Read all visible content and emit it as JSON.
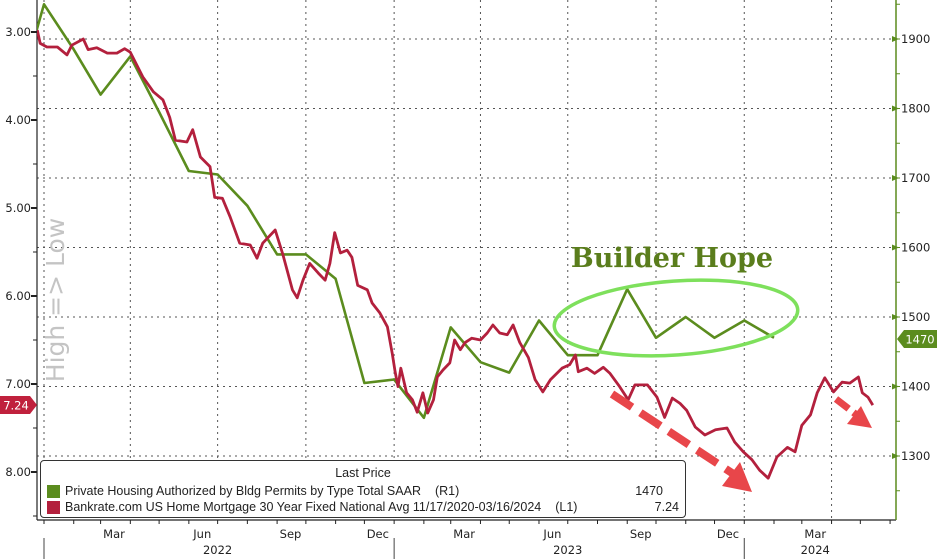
{
  "chart_data": {
    "type": "line",
    "left_axis": {
      "label": "High => Low",
      "ticks": [
        "3.00",
        "4.00",
        "5.00",
        "6.00",
        "7.00",
        "8.00"
      ],
      "range": [
        2.95,
        8.55
      ],
      "inverted": true
    },
    "right_axis": {
      "ticks": [
        "1300",
        "1400",
        "1500",
        "1600",
        "1700",
        "1800",
        "1900"
      ],
      "range": [
        1230,
        1955
      ]
    },
    "x_axis": {
      "month_labels": [
        {
          "label": "Mar",
          "date": "2022-03-15"
        },
        {
          "label": "Jun",
          "date": "2022-06-15"
        },
        {
          "label": "Sep",
          "date": "2022-09-15"
        },
        {
          "label": "Dec",
          "date": "2022-12-15"
        },
        {
          "label": "Mar",
          "date": "2023-03-15"
        },
        {
          "label": "Jun",
          "date": "2023-06-15"
        },
        {
          "label": "Sep",
          "date": "2023-09-15"
        },
        {
          "label": "Dec",
          "date": "2023-12-15"
        },
        {
          "label": "Mar",
          "date": "2024-03-15"
        }
      ],
      "year_labels": [
        {
          "label": "2022",
          "date": "2022-07-01"
        },
        {
          "label": "2023",
          "date": "2023-07-01"
        },
        {
          "label": "2024",
          "date": "2024-03-15"
        }
      ]
    },
    "grid": true,
    "legend": {
      "title": "Last Price",
      "position": "bottom-left",
      "entries": [
        {
          "label": "Private Housing Authorized by Bldg Permits by Type Total SAAR",
          "axis": "(R1)",
          "last": "1470",
          "color": "#5b8c1e"
        },
        {
          "label": "Bankrate.com US Home Mortgage 30 Year Fixed National Avg 11/17/2020-03/16/2024",
          "axis": "(L1)",
          "last": "7.24",
          "color": "#b3203d"
        }
      ]
    },
    "last_value_tags": {
      "left": "7.24",
      "right": "1470"
    },
    "series": [
      {
        "axis": "right",
        "color": "#5b8c1e",
        "points": [
          [
            "2021-12-01",
            1800
          ],
          [
            "2022-01-01",
            1950
          ],
          [
            "2022-02-01",
            1885
          ],
          [
            "2022-03-01",
            1820
          ],
          [
            "2022-04-01",
            1875
          ],
          [
            "2022-05-01",
            1795
          ],
          [
            "2022-06-01",
            1710
          ],
          [
            "2022-07-01",
            1705
          ],
          [
            "2022-08-01",
            1660
          ],
          [
            "2022-09-01",
            1590
          ],
          [
            "2022-10-01",
            1590
          ],
          [
            "2022-11-01",
            1555
          ],
          [
            "2022-12-01",
            1405
          ],
          [
            "2023-01-01",
            1410
          ],
          [
            "2023-02-01",
            1355
          ],
          [
            "2023-03-01",
            1485
          ],
          [
            "2023-04-01",
            1435
          ],
          [
            "2023-05-01",
            1420
          ],
          [
            "2023-06-01",
            1495
          ],
          [
            "2023-07-01",
            1445
          ],
          [
            "2023-08-01",
            1445
          ],
          [
            "2023-09-01",
            1540
          ],
          [
            "2023-10-01",
            1470
          ],
          [
            "2023-11-01",
            1500
          ],
          [
            "2023-12-01",
            1470
          ],
          [
            "2024-01-01",
            1495
          ],
          [
            "2024-02-01",
            1470
          ]
        ]
      },
      {
        "axis": "left",
        "color": "#b3203d",
        "points": [
          [
            "2021-12-25",
            2.98
          ],
          [
            "2021-12-28",
            3.13
          ],
          [
            "2022-01-04",
            3.17
          ],
          [
            "2022-01-15",
            3.17
          ],
          [
            "2022-01-25",
            3.26
          ],
          [
            "2022-01-30",
            3.15
          ],
          [
            "2022-02-11",
            3.08
          ],
          [
            "2022-02-16",
            3.2
          ],
          [
            "2022-02-25",
            3.18
          ],
          [
            "2022-03-08",
            3.24
          ],
          [
            "2022-03-18",
            3.24
          ],
          [
            "2022-03-26",
            3.19
          ],
          [
            "2022-04-01",
            3.23
          ],
          [
            "2022-04-14",
            3.51
          ],
          [
            "2022-04-25",
            3.68
          ],
          [
            "2022-05-05",
            3.77
          ],
          [
            "2022-05-12",
            3.97
          ],
          [
            "2022-05-18",
            4.23
          ],
          [
            "2022-05-30",
            4.25
          ],
          [
            "2022-06-05",
            4.11
          ],
          [
            "2022-06-13",
            4.42
          ],
          [
            "2022-06-23",
            4.53
          ],
          [
            "2022-06-28",
            4.88
          ],
          [
            "2022-07-06",
            4.89
          ],
          [
            "2022-07-14",
            5.1
          ],
          [
            "2022-07-24",
            5.4
          ],
          [
            "2022-08-04",
            5.42
          ],
          [
            "2022-08-11",
            5.57
          ],
          [
            "2022-08-17",
            5.4
          ],
          [
            "2022-08-30",
            5.25
          ],
          [
            "2022-09-07",
            5.53
          ],
          [
            "2022-09-17",
            5.93
          ],
          [
            "2022-09-22",
            6.02
          ],
          [
            "2022-09-28",
            5.82
          ],
          [
            "2022-10-05",
            5.63
          ],
          [
            "2022-10-14",
            5.74
          ],
          [
            "2022-10-21",
            5.82
          ],
          [
            "2022-10-26",
            5.63
          ],
          [
            "2022-10-31",
            5.28
          ],
          [
            "2022-11-06",
            5.51
          ],
          [
            "2022-11-13",
            5.48
          ],
          [
            "2022-11-18",
            5.56
          ],
          [
            "2022-11-24",
            5.88
          ],
          [
            "2022-12-04",
            5.93
          ],
          [
            "2022-12-09",
            6.08
          ],
          [
            "2022-12-17",
            6.19
          ],
          [
            "2022-12-25",
            6.35
          ],
          [
            "2022-12-30",
            6.65
          ],
          [
            "2023-01-02",
            6.86
          ],
          [
            "2023-01-05",
            7.03
          ],
          [
            "2023-01-08",
            6.82
          ],
          [
            "2023-01-14",
            7.1
          ],
          [
            "2023-01-20",
            7.18
          ],
          [
            "2023-01-25",
            7.32
          ],
          [
            "2023-01-31",
            7.1
          ],
          [
            "2023-02-05",
            7.33
          ],
          [
            "2023-02-11",
            7.18
          ],
          [
            "2023-02-15",
            6.92
          ],
          [
            "2023-02-21",
            6.84
          ],
          [
            "2023-02-28",
            6.76
          ],
          [
            "2023-03-05",
            6.5
          ],
          [
            "2023-03-11",
            6.61
          ],
          [
            "2023-03-16",
            6.53
          ],
          [
            "2023-03-23",
            6.48
          ],
          [
            "2023-04-01",
            6.5
          ],
          [
            "2023-04-08",
            6.42
          ],
          [
            "2023-04-14",
            6.33
          ],
          [
            "2023-04-21",
            6.42
          ],
          [
            "2023-04-29",
            6.44
          ],
          [
            "2023-05-05",
            6.33
          ],
          [
            "2023-05-12",
            6.53
          ],
          [
            "2023-05-21",
            6.7
          ],
          [
            "2023-05-28",
            6.95
          ],
          [
            "2023-06-05",
            7.09
          ],
          [
            "2023-06-13",
            6.95
          ],
          [
            "2023-06-25",
            6.82
          ],
          [
            "2023-07-03",
            6.78
          ],
          [
            "2023-07-09",
            6.67
          ],
          [
            "2023-07-12",
            6.86
          ],
          [
            "2023-07-21",
            6.82
          ],
          [
            "2023-07-29",
            6.88
          ],
          [
            "2023-08-07",
            6.81
          ],
          [
            "2023-08-14",
            6.88
          ],
          [
            "2023-08-24",
            7.03
          ],
          [
            "2023-09-02",
            7.18
          ],
          [
            "2023-09-09",
            7.01
          ],
          [
            "2023-09-22",
            7.01
          ],
          [
            "2023-10-02",
            7.15
          ],
          [
            "2023-10-10",
            7.38
          ],
          [
            "2023-10-18",
            7.16
          ],
          [
            "2023-10-26",
            7.22
          ],
          [
            "2023-11-02",
            7.3
          ],
          [
            "2023-11-11",
            7.49
          ],
          [
            "2023-11-21",
            7.58
          ],
          [
            "2023-12-02",
            7.52
          ],
          [
            "2023-12-14",
            7.5
          ],
          [
            "2023-12-22",
            7.66
          ],
          [
            "2023-12-31",
            7.77
          ],
          [
            "2024-01-09",
            7.86
          ],
          [
            "2024-01-17",
            7.98
          ],
          [
            "2024-01-26",
            8.07
          ],
          [
            "2024-02-04",
            7.83
          ],
          [
            "2024-02-15",
            7.72
          ],
          [
            "2024-02-23",
            7.77
          ],
          [
            "2024-03-01",
            7.47
          ],
          [
            "2024-03-10",
            7.35
          ],
          [
            "2024-03-17",
            7.1
          ],
          [
            "2024-03-25",
            6.93
          ],
          [
            "2024-04-03",
            7.09
          ],
          [
            "2024-04-12",
            6.98
          ],
          [
            "2024-04-20",
            6.99
          ],
          [
            "2024-04-29",
            6.92
          ],
          [
            "2024-05-03",
            7.1
          ],
          [
            "2024-05-09",
            7.15
          ],
          [
            "2024-05-14",
            7.24
          ]
        ]
      }
    ],
    "annotations": {
      "text": "Builder Hope",
      "text_color": "#5a7d1c",
      "ellipse_color": "#7ee05c",
      "arrow_color": "#e8464a"
    }
  }
}
